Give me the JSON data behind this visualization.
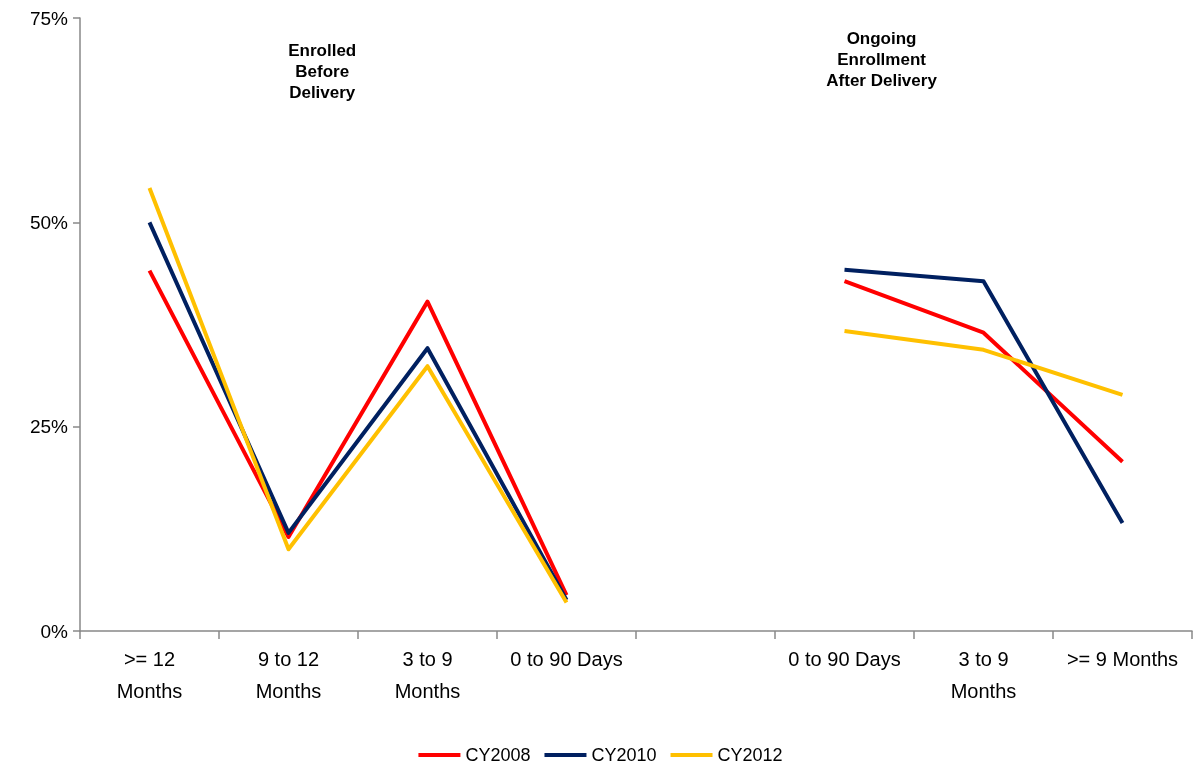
{
  "chart_data": {
    "type": "line",
    "categories": [
      ">= 12\nMonths",
      "9 to 12\nMonths",
      "3 to 9\nMonths",
      "0 to 90 Days",
      null,
      "0 to 90 Days",
      "3 to 9\nMonths",
      ">= 9 Months"
    ],
    "series": [
      {
        "name": "CY2008",
        "color": "#ff0000",
        "values": [
          44.1,
          11.5,
          40.3,
          4.4,
          null,
          42.8,
          36.5,
          20.7
        ]
      },
      {
        "name": "CY2010",
        "color": "#002060",
        "values": [
          50.0,
          12.0,
          34.6,
          3.8,
          null,
          44.2,
          42.8,
          13.2
        ]
      },
      {
        "name": "CY2012",
        "color": "#ffc000",
        "values": [
          54.2,
          10.0,
          32.4,
          3.5,
          null,
          36.7,
          34.4,
          28.9
        ]
      }
    ],
    "ylim": [
      0,
      75
    ],
    "yticks": [
      {
        "value": 0,
        "label": "0%"
      },
      {
        "value": 25,
        "label": "25%"
      },
      {
        "value": 50,
        "label": "50%"
      },
      {
        "value": 75,
        "label": "75%"
      }
    ],
    "annotations": [
      {
        "text": "Enrolled\nBefore\nDelivery"
      },
      {
        "text": "Ongoing\nEnrollment\nAfter Delivery"
      }
    ],
    "grid": false,
    "legend": "bottom",
    "marker": "none",
    "line_style": "solid"
  }
}
